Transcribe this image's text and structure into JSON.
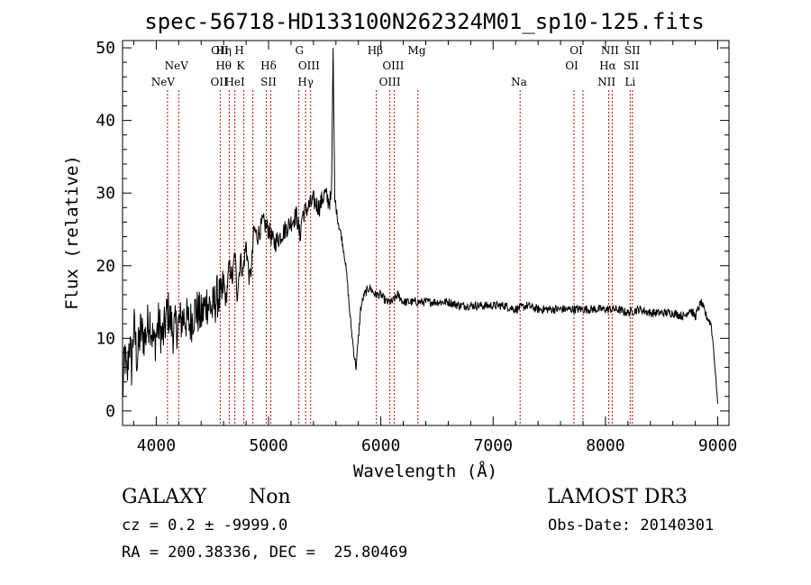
{
  "chart_data": {
    "type": "line",
    "title": "spec-56718-HD133100N262324M01_sp10-125.fits",
    "xlabel": "Wavelength (Å)",
    "ylabel": "Flux (relative)",
    "xlim": [
      3700,
      9100
    ],
    "ylim": [
      -2,
      51
    ],
    "x_ticks": [
      4000,
      5000,
      6000,
      7000,
      8000,
      9000
    ],
    "y_ticks": [
      0,
      10,
      20,
      30,
      40,
      50
    ],
    "grid": false,
    "line_color": "#000000",
    "marker_color": "#cc0000",
    "series": [
      {
        "name": "flux",
        "x": [
          3700,
          3720,
          3740,
          3760,
          3780,
          3800,
          3830,
          3860,
          3900,
          3940,
          3980,
          4020,
          4060,
          4100,
          4150,
          4200,
          4250,
          4300,
          4350,
          4400,
          4450,
          4500,
          4550,
          4580,
          4600,
          4620,
          4650,
          4680,
          4700,
          4720,
          4750,
          4770,
          4800,
          4830,
          4850,
          4870,
          4900,
          4950,
          5000,
          5050,
          5100,
          5150,
          5200,
          5250,
          5280,
          5300,
          5350,
          5400,
          5450,
          5500,
          5530,
          5560,
          5575,
          5590,
          5600,
          5620,
          5650,
          5680,
          5700,
          5720,
          5740,
          5760,
          5780,
          5800,
          5820,
          5850,
          5900,
          5950,
          6000,
          6050,
          6100,
          6150,
          6200,
          6300,
          6400,
          6500,
          6600,
          6700,
          6800,
          6900,
          7000,
          7100,
          7200,
          7300,
          7400,
          7500,
          7600,
          7700,
          7800,
          7900,
          8000,
          8100,
          8200,
          8300,
          8400,
          8500,
          8600,
          8700,
          8750,
          8800,
          8850,
          8900,
          8940,
          8960,
          8980,
          8990,
          9000
        ],
        "y": [
          2,
          8,
          4,
          10,
          6,
          12,
          7,
          11,
          10,
          13,
          9,
          12,
          10,
          14,
          11,
          12,
          13,
          12,
          14,
          13,
          15,
          14,
          16,
          15,
          18,
          15,
          20,
          18,
          22,
          16,
          21,
          19,
          23,
          18,
          20,
          25,
          24,
          26,
          25,
          23,
          24,
          25,
          26,
          27,
          24,
          27,
          28,
          29,
          28,
          30,
          29,
          29,
          50,
          29,
          28,
          26,
          24,
          21,
          18,
          14,
          11,
          8,
          6,
          10,
          14,
          16,
          17,
          16,
          16,
          15,
          15,
          16,
          15,
          15,
          15,
          15,
          15,
          14.5,
          14.5,
          14.5,
          14.5,
          14.5,
          14,
          14.5,
          14,
          14,
          14,
          14,
          14,
          14,
          14,
          14,
          13.5,
          14,
          13.5,
          13.5,
          13.5,
          13,
          14,
          13,
          15,
          13,
          12,
          9,
          5,
          3,
          1
        ]
      }
    ],
    "lines_top": [
      {
        "label": "OII",
        "x": 4565
      },
      {
        "label": "Hη",
        "x": 4600
      },
      {
        "label": "H",
        "x": 4740
      },
      {
        "label": "G",
        "x": 5275
      },
      {
        "label": "Hβ",
        "x": 5950
      },
      {
        "label": "Mg",
        "x": 6320
      },
      {
        "label": "OI",
        "x": 7740
      },
      {
        "label": "NII",
        "x": 8040
      },
      {
        "label": "SII",
        "x": 8240
      }
    ],
    "lines_mid": [
      {
        "label": "NeV",
        "x": 4180
      },
      {
        "label": "Hθ",
        "x": 4600
      },
      {
        "label": "K",
        "x": 4750
      },
      {
        "label": "Hδ",
        "x": 5000
      },
      {
        "label": "OIII",
        "x": 5360
      },
      {
        "label": "OIII",
        "x": 6110
      },
      {
        "label": "OI",
        "x": 7700
      },
      {
        "label": "Hα",
        "x": 8020
      },
      {
        "label": "SII",
        "x": 8230
      }
    ],
    "lines_bot": [
      {
        "label": "NeV",
        "x": 4060
      },
      {
        "label": "OII",
        "x": 4560
      },
      {
        "label": "HeI",
        "x": 4700
      },
      {
        "label": "SII",
        "x": 5000
      },
      {
        "label": "Hγ",
        "x": 5330
      },
      {
        "label": "OIII",
        "x": 6080
      },
      {
        "label": "Na",
        "x": 7230
      },
      {
        "label": "NII",
        "x": 8010
      },
      {
        "label": "Li",
        "x": 8220
      }
    ],
    "marker_x": [
      4100,
      4200,
      4570,
      4650,
      4700,
      4780,
      4860,
      4980,
      5020,
      5270,
      5330,
      5375,
      5960,
      6080,
      6120,
      6330,
      7240,
      7720,
      7800,
      8030,
      8060,
      8220,
      8240
    ]
  },
  "info": {
    "object_class": "GALAXY",
    "subclass": "Non",
    "survey": "LAMOST DR3",
    "cz": "cz = 0.2 ± -9999.0",
    "obs_date": "Obs-Date: 20140301",
    "radec": "RA = 200.38336, DEC =  25.80469"
  }
}
